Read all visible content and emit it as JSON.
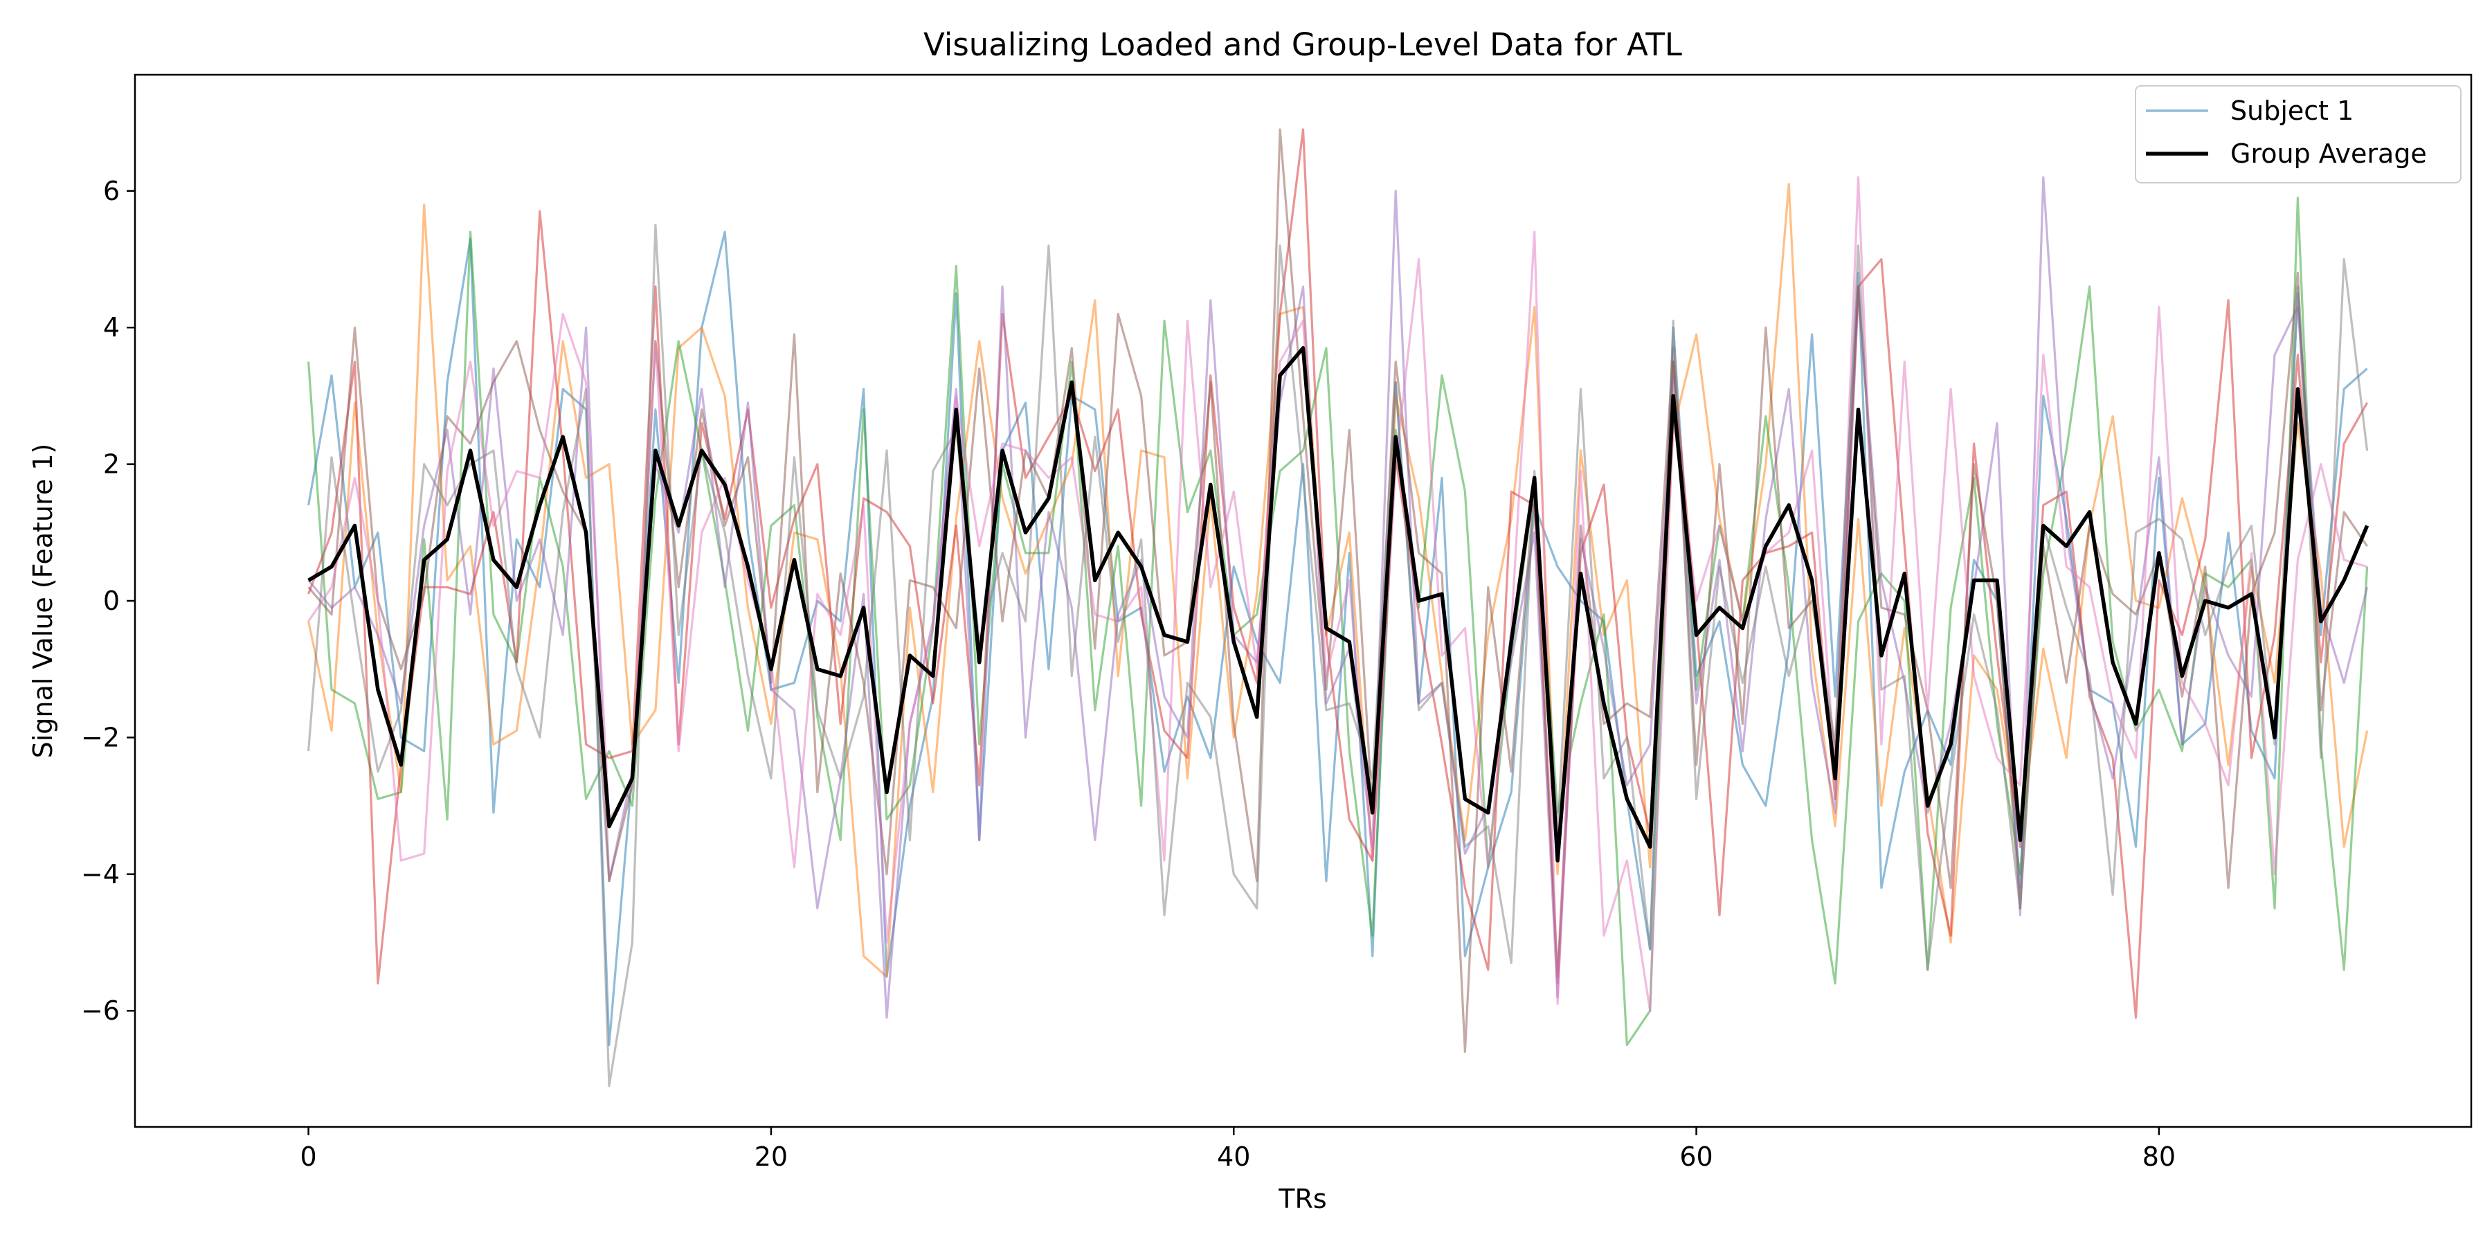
{
  "chart_data": {
    "type": "line",
    "title": "Visualizing Loaded and Group-Level Data for ATL",
    "xlabel": "TRs",
    "ylabel": "Signal Value (Feature 1)",
    "xlim": [
      -7.5,
      93.5
    ],
    "ylim": [
      -7.7,
      7.7
    ],
    "xticks": [
      0,
      20,
      40,
      60,
      80
    ],
    "yticks": [
      -6,
      -4,
      -2,
      0,
      2,
      4,
      6
    ],
    "ytick_labels": [
      "−6",
      "−4",
      "−2",
      "0",
      "2",
      "4",
      "6"
    ],
    "grid": false,
    "legend": {
      "position": "top-right",
      "entries": [
        {
          "label": "Subject 1",
          "color": "#1f77b4",
          "opacity": 0.5,
          "linewidth": 2.5
        },
        {
          "label": "Group Average",
          "color": "#000000",
          "opacity": 1,
          "linewidth": 4.5
        }
      ]
    },
    "series": [
      {
        "name": "Subject 1",
        "color": "#1f77b4",
        "values": [
          1.4,
          3.3,
          0.2,
          1.0,
          -2.0,
          -2.2,
          3.2,
          5.3,
          -3.1,
          0.9,
          0.2,
          3.1,
          2.8,
          -6.5,
          -2.5,
          2.8,
          -1.2,
          4.0,
          5.4,
          1.0,
          -1.3,
          -1.2,
          0.0,
          -0.3,
          3.1,
          -5.5,
          -3.0,
          -1.4,
          4.5,
          -3.5,
          2.2,
          2.9,
          -1.0,
          3.0,
          2.8,
          -0.3,
          -0.1,
          -2.5,
          -1.4,
          -2.3,
          0.5,
          -0.6,
          -1.2,
          2.0,
          -4.1,
          0.7,
          -5.2,
          3.2,
          -1.5,
          1.8,
          -5.2,
          -3.9,
          -2.8,
          1.4,
          0.5,
          0.0,
          -0.3,
          -2.9,
          -5.1,
          4.0,
          -1.1,
          -0.3,
          -2.4,
          -3.0,
          -0.7,
          3.9,
          -1.4,
          4.8,
          -4.2,
          -2.5,
          -1.6,
          -2.4,
          0.6,
          0.0,
          -4.2,
          3.0,
          1.2,
          -1.3,
          -1.5,
          -3.6,
          1.8,
          -2.1,
          -1.8,
          1.0,
          -1.9,
          -2.6,
          4.5,
          -0.5,
          3.1,
          3.4
        ]
      },
      {
        "name": "",
        "color": "#ff7f0e",
        "values": [
          -0.3,
          -1.9,
          2.9,
          -0.5,
          -2.8,
          5.8,
          0.3,
          0.8,
          -2.1,
          -1.9,
          0.6,
          3.8,
          1.8,
          2.0,
          -2.1,
          -1.6,
          3.7,
          4.0,
          3.0,
          -0.1,
          -1.8,
          1.0,
          0.9,
          -1.0,
          -5.2,
          -5.5,
          -0.1,
          -2.8,
          1.2,
          3.8,
          1.5,
          0.4,
          1.2,
          2.0,
          4.4,
          -1.1,
          2.2,
          2.1,
          -2.6,
          1.5,
          -2.0,
          0.1,
          4.2,
          4.3,
          -0.5,
          1.0,
          -3.8,
          3.0,
          1.5,
          -1.1,
          -3.5,
          -0.5,
          1.2,
          4.3,
          -4.0,
          2.2,
          -0.5,
          0.3,
          -3.9,
          2.5,
          3.9,
          1.2,
          -0.3,
          2.0,
          6.1,
          -0.7,
          -3.3,
          1.2,
          -3.0,
          -0.4,
          -2.8,
          -5.0,
          -0.8,
          -1.3,
          -3.5,
          -0.7,
          -2.3,
          1.1,
          2.7,
          0.0,
          -0.1,
          1.5,
          0.2,
          -2.4,
          0.5,
          -1.2,
          2.6,
          0.4,
          -3.6,
          -1.9
        ]
      },
      {
        "name": "",
        "color": "#2ca02c",
        "values": [
          3.5,
          -1.3,
          -1.5,
          -2.9,
          -2.8,
          0.9,
          -3.2,
          5.4,
          -0.2,
          -0.9,
          1.8,
          0.5,
          -2.9,
          -2.2,
          -3.0,
          1.5,
          3.8,
          2.2,
          0.3,
          -1.9,
          1.1,
          1.4,
          -1.7,
          -3.5,
          2.8,
          -3.2,
          -2.7,
          -0.4,
          4.9,
          -2.1,
          2.0,
          0.7,
          0.7,
          3.5,
          -1.6,
          0.8,
          -3.0,
          4.1,
          1.3,
          2.2,
          -0.5,
          -0.2,
          1.9,
          2.2,
          3.7,
          -2.2,
          -4.9,
          2.5,
          -0.1,
          3.3,
          1.6,
          -3.9,
          -0.8,
          1.7,
          -3.1,
          -1.5,
          -0.2,
          -6.5,
          -6.0,
          3.5,
          -1.3,
          1.1,
          -0.3,
          2.7,
          0.2,
          -3.5,
          -5.6,
          -0.3,
          0.4,
          0.0,
          -5.4,
          -0.1,
          1.8,
          -1.8,
          -4.0,
          0.4,
          2.2,
          4.6,
          -0.6,
          -1.9,
          -1.3,
          -2.2,
          0.4,
          0.2,
          0.6,
          -4.5,
          5.9,
          -2.1,
          -5.4,
          0.5
        ]
      },
      {
        "name": "",
        "color": "#d62728",
        "values": [
          0.1,
          1.0,
          3.5,
          -5.6,
          -2.4,
          0.2,
          0.2,
          0.1,
          1.3,
          -0.9,
          5.7,
          2.2,
          -2.1,
          -2.3,
          -2.2,
          4.6,
          -2.1,
          2.6,
          1.2,
          2.8,
          -0.1,
          1.2,
          2.0,
          -1.8,
          1.5,
          1.3,
          0.8,
          -1.5,
          1.1,
          -2.7,
          4.2,
          1.8,
          2.4,
          3.0,
          1.9,
          2.8,
          -0.2,
          -1.9,
          -2.3,
          3.3,
          -0.1,
          -1.2,
          4.2,
          6.9,
          -0.5,
          -3.2,
          -3.8,
          2.1,
          -0.2,
          -2.1,
          -4.2,
          -5.4,
          1.6,
          1.4,
          -5.6,
          0.7,
          1.7,
          -2.0,
          -3.4,
          3.5,
          -0.3,
          -4.6,
          0.3,
          0.7,
          0.8,
          1.0,
          -2.9,
          4.6,
          5.0,
          0.8,
          -3.4,
          -4.9,
          2.3,
          -0.8,
          -3.6,
          1.4,
          1.6,
          -1.4,
          -2.3,
          -6.1,
          0.3,
          -0.5,
          0.9,
          4.4,
          -2.3,
          -0.5,
          3.6,
          -0.9,
          2.3,
          2.9
        ]
      },
      {
        "name": "",
        "color": "#9467bd",
        "values": [
          0.3,
          -0.1,
          0.2,
          -0.5,
          -1.5,
          1.1,
          2.5,
          -0.2,
          3.4,
          0.0,
          0.9,
          -0.5,
          4.0,
          -4.1,
          -2.5,
          2.0,
          1.0,
          3.1,
          0.2,
          2.9,
          -1.3,
          -1.6,
          -4.5,
          -2.6,
          0.1,
          -6.1,
          -1.8,
          -0.3,
          3.1,
          -3.5,
          4.6,
          -2.0,
          1.3,
          -0.1,
          -3.5,
          -0.2,
          0.6,
          -1.4,
          -2.0,
          4.4,
          -0.5,
          -0.9,
          2.9,
          4.6,
          -1.5,
          -0.7,
          -3.6,
          6.0,
          -1.5,
          -1.2,
          -3.7,
          -3.0,
          -0.9,
          1.0,
          -5.8,
          0.9,
          -0.7,
          -2.7,
          -2.1,
          3.3,
          -1.5,
          0.6,
          -2.2,
          1.2,
          3.1,
          -1.2,
          -3.1,
          4.5,
          0.3,
          -1.2,
          -3.1,
          -1.8,
          0.2,
          2.6,
          -4.6,
          6.2,
          1.0,
          -1.3,
          -2.6,
          -0.4,
          2.1,
          -2.1,
          0.2,
          -0.8,
          -1.4,
          3.6,
          4.3,
          -0.1,
          -1.2,
          0.2
        ]
      },
      {
        "name": "",
        "color": "#8c564b",
        "values": [
          0.2,
          -0.2,
          4.0,
          0.0,
          -1.0,
          0.1,
          2.7,
          2.3,
          3.2,
          3.8,
          2.5,
          1.6,
          1.0,
          -4.1,
          -2.7,
          3.8,
          0.2,
          2.8,
          1.1,
          2.1,
          -1.2,
          3.9,
          -2.8,
          0.4,
          -1.2,
          -4.0,
          0.3,
          0.2,
          -0.4,
          3.4,
          -0.3,
          2.2,
          1.5,
          3.7,
          -0.7,
          4.2,
          3.0,
          -0.8,
          -0.6,
          3.2,
          -1.8,
          -4.1,
          6.9,
          2.7,
          -1.3,
          2.5,
          -3.1,
          3.5,
          0.7,
          0.4,
          -6.6,
          0.2,
          -2.5,
          1.7,
          -5.5,
          1.1,
          -1.8,
          -1.5,
          -1.7,
          3.7,
          -2.4,
          2.0,
          -1.8,
          4.0,
          -0.4,
          0.0,
          -2.2,
          4.6,
          -0.1,
          -0.2,
          -1.6,
          -4.2,
          2.0,
          0.0,
          -4.5,
          0.8,
          -1.2,
          1.1,
          0.1,
          -0.2,
          0.7,
          -1.4,
          0.5,
          -4.2,
          0.1,
          1.0,
          4.8,
          -1.6,
          1.3,
          0.8
        ]
      },
      {
        "name": "",
        "color": "#e377c2",
        "values": [
          -0.3,
          0.2,
          1.8,
          0.0,
          -3.8,
          -3.7,
          1.9,
          3.5,
          1.1,
          1.9,
          1.8,
          4.2,
          3.2,
          -3.2,
          -2.7,
          3.8,
          -2.2,
          1.0,
          1.8,
          0.3,
          -0.9,
          -3.9,
          0.1,
          -0.5,
          1.4,
          -5.0,
          -1.8,
          -0.4,
          3.0,
          0.8,
          2.3,
          2.2,
          1.8,
          2.1,
          -0.2,
          -0.3,
          0.2,
          -3.8,
          4.1,
          0.2,
          1.6,
          -1.0,
          3.5,
          4.1,
          -1.1,
          0.3,
          -3.8,
          2.0,
          5.0,
          -0.8,
          -0.4,
          -3.9,
          -0.4,
          5.4,
          -5.9,
          1.9,
          -4.9,
          -3.8,
          -6.0,
          2.7,
          0.0,
          1.1,
          -0.3,
          0.7,
          1.0,
          2.2,
          -2.5,
          6.2,
          -2.1,
          3.5,
          -1.6,
          3.1,
          -1.1,
          -2.3,
          -2.7,
          3.6,
          0.5,
          0.2,
          -1.5,
          -2.3,
          4.3,
          -1.2,
          -1.8,
          -2.7,
          0.7,
          -4.0,
          0.6,
          2.0,
          0.6,
          0.5
        ]
      },
      {
        "name": "",
        "color": "#7f7f7f",
        "values": [
          -2.2,
          2.1,
          -0.3,
          -2.5,
          -1.6,
          2.0,
          1.4,
          2.0,
          2.2,
          -1.0,
          -2.0,
          1.3,
          3.1,
          -7.1,
          -5.0,
          5.5,
          -0.5,
          2.2,
          1.0,
          -1.1,
          -2.6,
          2.1,
          -1.6,
          -2.6,
          -1.4,
          2.2,
          -3.5,
          1.9,
          2.5,
          -0.6,
          0.7,
          -0.3,
          5.2,
          -1.1,
          2.4,
          -0.6,
          0.9,
          -4.6,
          -1.2,
          -1.7,
          -4.0,
          -4.5,
          5.2,
          1.8,
          -1.6,
          -1.5,
          -2.6,
          3.2,
          -1.6,
          -1.2,
          -3.6,
          -3.3,
          -5.3,
          1.9,
          -3.4,
          3.1,
          -2.6,
          -2.0,
          -5.1,
          4.1,
          -2.9,
          0.5,
          -1.2,
          0.5,
          -1.1,
          0.2,
          -2.1,
          5.2,
          -1.3,
          -1.1,
          -5.4,
          -2.6,
          -0.2,
          -1.6,
          -4.5,
          1.1,
          -0.1,
          -1.1,
          -4.3,
          1.0,
          1.2,
          0.9,
          -0.5,
          0.5,
          1.1,
          -2.1,
          4.6,
          -2.3,
          5.0,
          2.2
        ]
      },
      {
        "name": "Group Average",
        "color": "#000000",
        "values": [
          0.3,
          0.5,
          1.1,
          -1.3,
          -2.4,
          0.6,
          0.9,
          2.2,
          0.6,
          0.2,
          1.4,
          2.4,
          1.0,
          -3.3,
          -2.6,
          2.2,
          1.1,
          2.2,
          1.7,
          0.5,
          -1.0,
          0.6,
          -1.0,
          -1.1,
          -0.1,
          -2.8,
          -0.8,
          -1.1,
          2.8,
          -0.9,
          2.2,
          1.0,
          1.5,
          3.2,
          0.3,
          1.0,
          0.5,
          -0.5,
          -0.6,
          1.7,
          -0.6,
          -1.7,
          3.3,
          3.7,
          -0.4,
          -0.6,
          -3.1,
          2.4,
          0.0,
          0.1,
          -2.9,
          -3.1,
          -0.6,
          1.8,
          -3.8,
          0.4,
          -1.5,
          -2.9,
          -3.6,
          3.0,
          -0.5,
          -0.1,
          -0.4,
          0.8,
          1.4,
          0.3,
          -2.6,
          2.8,
          -0.8,
          0.4,
          -3.0,
          -2.1,
          0.3,
          0.3,
          -3.5,
          1.1,
          0.8,
          1.3,
          -0.9,
          -1.8,
          0.7,
          -1.1,
          0.0,
          -0.1,
          0.1,
          -2.0,
          3.1,
          -0.3,
          0.3,
          1.1
        ]
      }
    ]
  }
}
